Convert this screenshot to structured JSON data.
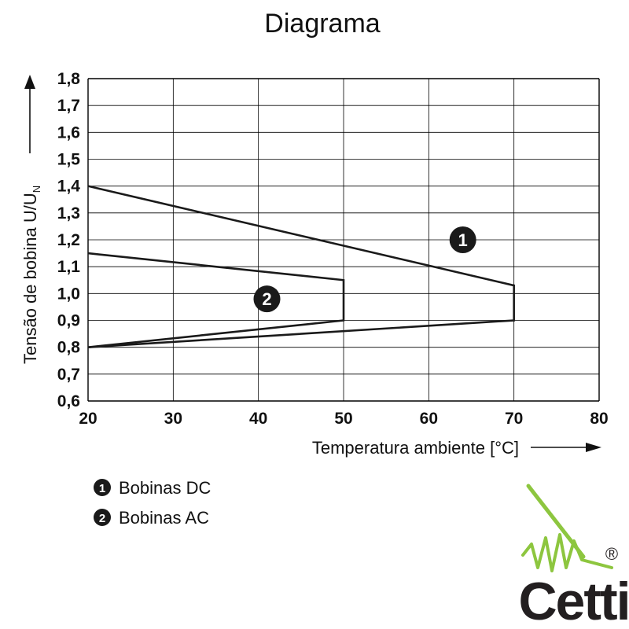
{
  "chart_data": {
    "type": "line",
    "title": "Diagrama",
    "xlabel": "Temperatura ambiente [°C]",
    "ylabel_prefix": "Tensão de bobina U/U",
    "ylabel_subscript": "N",
    "xlim": [
      20,
      80
    ],
    "ylim": [
      0.6,
      1.8
    ],
    "x_ticks": [
      "20",
      "30",
      "40",
      "50",
      "60",
      "70",
      "80"
    ],
    "y_ticks": [
      "0,6",
      "0,7",
      "0,8",
      "0,9",
      "1,0",
      "1,1",
      "1,2",
      "1,3",
      "1,4",
      "1,5",
      "1,6",
      "1,7",
      "1,8"
    ],
    "grid": true,
    "series": [
      {
        "marker": "1",
        "name": "Bobinas DC",
        "points": [
          [
            20,
            1.4
          ],
          [
            70,
            1.03
          ],
          [
            70,
            0.9
          ],
          [
            20,
            0.8
          ]
        ],
        "marker_at": [
          64,
          1.2
        ]
      },
      {
        "marker": "2",
        "name": "Bobinas AC",
        "points": [
          [
            20,
            1.15
          ],
          [
            50,
            1.05
          ],
          [
            50,
            0.9
          ],
          [
            20,
            0.8
          ]
        ],
        "marker_at": [
          41,
          0.98
        ]
      }
    ]
  },
  "legend": [
    {
      "marker": "1",
      "label": "Bobinas DC"
    },
    {
      "marker": "2",
      "label": "Bobinas AC"
    }
  ],
  "logo": {
    "text": "Cetti",
    "registered": "®",
    "text_color": "#231f20",
    "accent_color": "#8dc63f"
  },
  "colors": {
    "line": "#1a1a1a",
    "grid": "#000000",
    "marker_fill": "#1a1a1a"
  }
}
